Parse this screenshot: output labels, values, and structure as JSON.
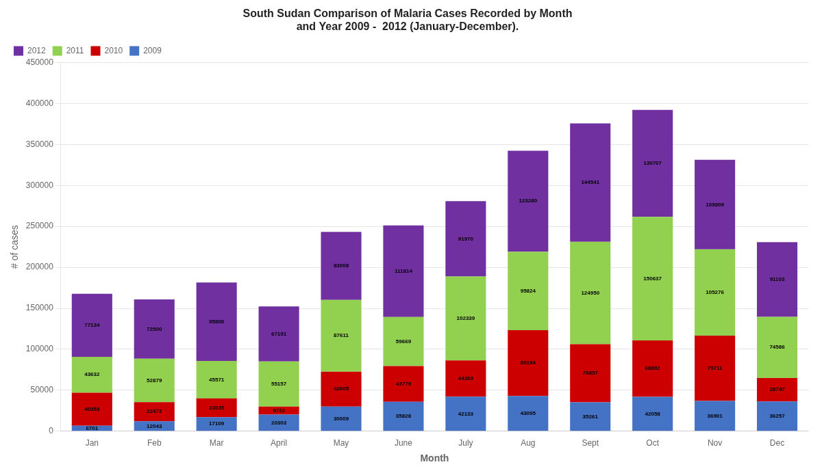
{
  "chart_data": {
    "type": "bar",
    "title": "South Sudan Comparison of Malaria Cases Recorded by Month\nand Year 2009 -  2012 (January-December).",
    "xlabel": "Month",
    "ylabel": "# of cases",
    "categories": [
      "Jan",
      "Feb",
      "Mar",
      "April",
      "May",
      "June",
      "July",
      "Aug",
      "Sept",
      "Oct",
      "Nov",
      "Dec"
    ],
    "series": [
      {
        "name": "2009",
        "color": "#4472C4",
        "values": [
          6701,
          12043,
          17109,
          20303,
          30009,
          35828,
          42133,
          43095,
          35261,
          42058,
          36901,
          36257
        ]
      },
      {
        "name": "2010",
        "color": "#CC0000",
        "values": [
          40353,
          23473,
          23035,
          9722,
          42605,
          43779,
          44309,
          80194,
          70857,
          68802,
          79711,
          28747
        ]
      },
      {
        "name": "2011",
        "color": "#92D050",
        "values": [
          43632,
          52879,
          45571,
          55157,
          87611,
          59669,
          102339,
          95824,
          124950,
          150637,
          105276,
          74586
        ]
      },
      {
        "name": "2012",
        "color": "#7030A0",
        "values": [
          77134,
          72500,
          95800,
          67191,
          83008,
          111814,
          91970,
          123280,
          144541,
          130707,
          109309,
          91103
        ]
      }
    ],
    "stacked": true,
    "data_labels": true,
    "ylim": [
      0,
      450000
    ],
    "yticks": [
      0,
      50000,
      100000,
      150000,
      200000,
      250000,
      300000,
      350000,
      400000,
      450000
    ],
    "grid": true,
    "legend": "upper left"
  }
}
